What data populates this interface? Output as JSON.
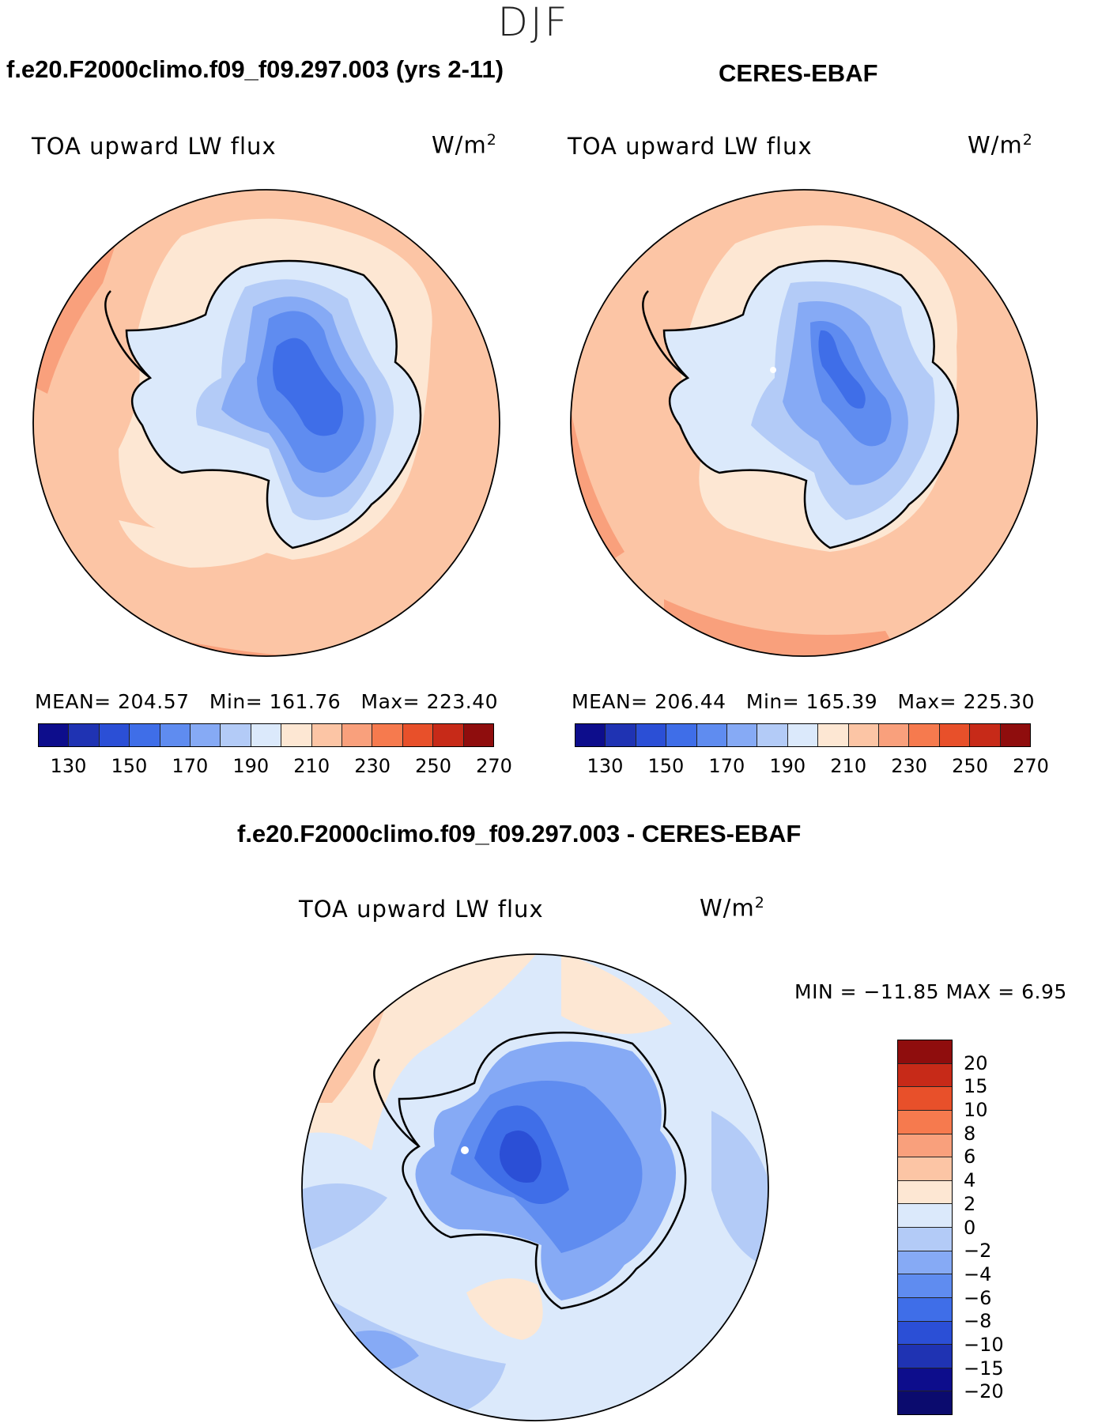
{
  "season": "DJF",
  "panels": {
    "model": {
      "title": "f.e20.F2000climo.f09_f09.297.003 (yrs 2-11)",
      "variable": "TOA upward LW flux",
      "units_base": "W/m",
      "units_exp": "2",
      "mean_label": "MEAN=",
      "mean": "204.57",
      "min_label": "Min=",
      "min": "161.76",
      "max_label": "Max=",
      "max": "223.40"
    },
    "obs": {
      "title": "CERES-EBAF",
      "variable": "TOA upward LW flux",
      "units_base": "W/m",
      "units_exp": "2",
      "mean_label": "MEAN=",
      "mean": "206.44",
      "min_label": "Min=",
      "min": "165.39",
      "max_label": "Max=",
      "max": "225.30"
    },
    "diff": {
      "title": "f.e20.F2000climo.f09_f09.297.003 - CERES-EBAF",
      "variable": "TOA upward LW flux",
      "units_base": "W/m",
      "units_exp": "2",
      "minmax_text": "MIN = −11.85 MAX =    6.95"
    }
  },
  "chart_data": [
    {
      "type": "heatmap",
      "projection": "south-polar-stereographic",
      "title": "f.e20.F2000climo.f09_f09.297.003 (yrs 2-11)",
      "variable": "TOA upward LW flux",
      "units": "W/m2",
      "mean": 204.57,
      "min": 161.76,
      "max": 223.4,
      "colorbar_levels": [
        130,
        140,
        150,
        160,
        170,
        180,
        190,
        200,
        210,
        220,
        230,
        240,
        250,
        260,
        270
      ],
      "colorbar_tick_labels": [
        "130",
        "150",
        "170",
        "190",
        "210",
        "230",
        "250",
        "270"
      ],
      "colorbar_colors": [
        "#0d0d8c",
        "#1f33b3",
        "#2b4fd6",
        "#3f6ee8",
        "#5f8cf0",
        "#86aaf5",
        "#b3cbf7",
        "#dbe9fb",
        "#fde7d3",
        "#fcc5a5",
        "#f9a07c",
        "#f67a4e",
        "#e8502a",
        "#c72a18",
        "#8f0d0d"
      ]
    },
    {
      "type": "heatmap",
      "projection": "south-polar-stereographic",
      "title": "CERES-EBAF",
      "variable": "TOA upward LW flux",
      "units": "W/m2",
      "mean": 206.44,
      "min": 165.39,
      "max": 225.3,
      "colorbar_levels": [
        130,
        140,
        150,
        160,
        170,
        180,
        190,
        200,
        210,
        220,
        230,
        240,
        250,
        260,
        270
      ],
      "colorbar_tick_labels": [
        "130",
        "150",
        "170",
        "190",
        "210",
        "230",
        "250",
        "270"
      ],
      "colorbar_colors": [
        "#0d0d8c",
        "#1f33b3",
        "#2b4fd6",
        "#3f6ee8",
        "#5f8cf0",
        "#86aaf5",
        "#b3cbf7",
        "#dbe9fb",
        "#fde7d3",
        "#fcc5a5",
        "#f9a07c",
        "#f67a4e",
        "#e8502a",
        "#c72a18",
        "#8f0d0d"
      ]
    },
    {
      "type": "heatmap",
      "projection": "south-polar-stereographic",
      "title": "f.e20.F2000climo.f09_f09.297.003 - CERES-EBAF",
      "variable": "TOA upward LW flux",
      "units": "W/m2",
      "min": -11.85,
      "max": 6.95,
      "colorbar_labels": [
        "20",
        "15",
        "10",
        "8",
        "6",
        "4",
        "2",
        "0",
        "−2",
        "−4",
        "−6",
        "−8",
        "−10",
        "−15",
        "−20"
      ],
      "colorbar_colors": [
        "#8f0d0d",
        "#c72a18",
        "#e8502a",
        "#f67a4e",
        "#f9a07c",
        "#fcc5a5",
        "#fde7d3",
        "#dbe9fb",
        "#b3cbf7",
        "#86aaf5",
        "#5f8cf0",
        "#3f6ee8",
        "#2b4fd6",
        "#1f33b3",
        "#0d0d8c",
        "#0b0b6e"
      ]
    }
  ]
}
